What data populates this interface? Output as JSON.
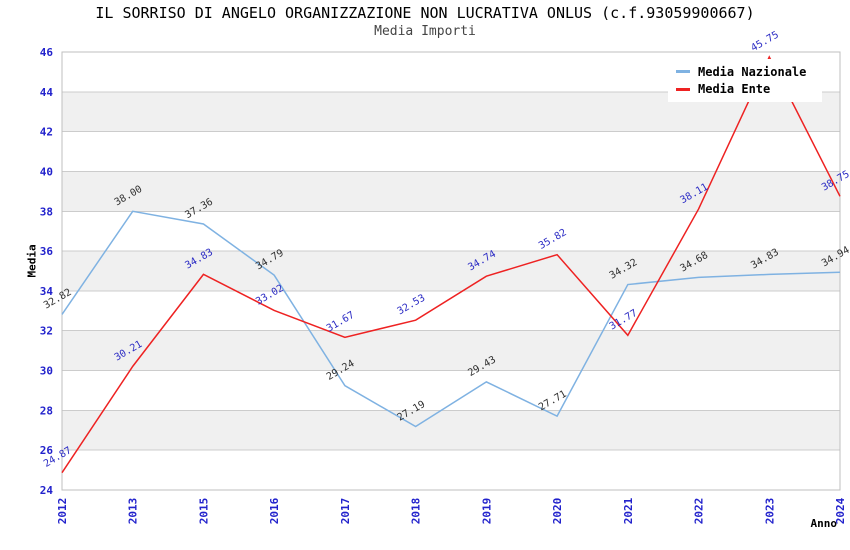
{
  "title": "IL SORRISO DI ANGELO ORGANIZZAZIONE NON LUCRATIVA ONLUS (c.f.93059900667)",
  "subtitle": "Media Importi",
  "colors": {
    "tick_label": "#2222cc",
    "grid_line": "#cccccc",
    "band_fill": "#f0f0f0",
    "plot_border": "#bfbfbf",
    "series_nazionale": "#7fb2e2",
    "series_ente": "#ee2222",
    "label_nazionale": "#303030",
    "label_ente": "#2b2bc4"
  },
  "chart_data": {
    "type": "line",
    "title": "IL SORRISO DI ANGELO ORGANIZZAZIONE NON LUCRATIVA ONLUS (c.f.93059900667)",
    "subtitle": "Media Importi",
    "categories": [
      "2012",
      "2013",
      "2015",
      "2016",
      "2017",
      "2018",
      "2019",
      "2020",
      "2021",
      "2022",
      "2023",
      "2024"
    ],
    "series": [
      {
        "name": "Media Nazionale",
        "color": "#7fb2e2",
        "label_color": "#303030",
        "values": [
          32.82,
          38.0,
          37.36,
          34.79,
          29.24,
          27.19,
          29.43,
          27.71,
          34.32,
          34.68,
          34.83,
          34.94
        ]
      },
      {
        "name": "Media Ente",
        "color": "#ee2222",
        "label_color": "#2b2bc4",
        "values": [
          24.87,
          30.21,
          34.83,
          33.02,
          31.67,
          32.53,
          34.74,
          35.82,
          31.77,
          38.11,
          45.75,
          38.75
        ]
      }
    ],
    "xlabel": "Anno",
    "ylabel": "Media",
    "ylim": [
      24,
      46
    ],
    "ytick_step": 2,
    "grid": true,
    "alternating_bands": true,
    "legend_position": "top-right",
    "point_label_decimals": 2
  }
}
